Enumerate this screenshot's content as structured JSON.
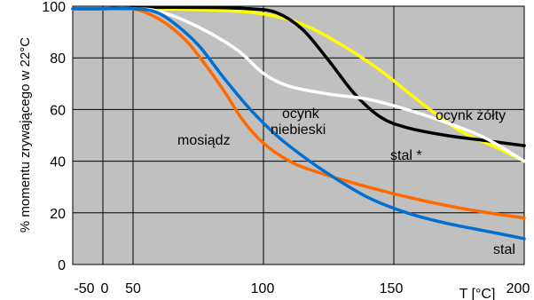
{
  "chart_data": {
    "type": "line",
    "title": "",
    "ylabel": "% momentu zrywającego w 22°C",
    "xlabel": "T [°C]",
    "xlim": [
      -50,
      200
    ],
    "ylim": [
      0,
      100
    ],
    "x_ticks": [
      -50,
      0,
      50,
      100,
      150,
      200
    ],
    "y_ticks": [
      0,
      20,
      40,
      60,
      80,
      100
    ],
    "grid": true,
    "legend": "none",
    "colors": {
      "plot_background": "#c0c0c0",
      "grid": "#000000"
    },
    "series": [
      {
        "name": "ocynk żółty",
        "color": "#ffff00",
        "points": [
          [
            -50,
            99
          ],
          [
            0,
            99
          ],
          [
            50,
            99
          ],
          [
            80,
            98.5
          ],
          [
            100,
            97
          ],
          [
            115,
            93
          ],
          [
            130,
            85
          ],
          [
            145,
            75
          ],
          [
            160,
            63
          ],
          [
            175,
            52
          ],
          [
            190,
            45
          ],
          [
            200,
            40
          ]
        ]
      },
      {
        "name": "stal *",
        "color": "#000000",
        "points": [
          [
            -50,
            99
          ],
          [
            0,
            99
          ],
          [
            50,
            99.5
          ],
          [
            80,
            99.5
          ],
          [
            95,
            99
          ],
          [
            105,
            97.5
          ],
          [
            115,
            91
          ],
          [
            125,
            79
          ],
          [
            135,
            66
          ],
          [
            145,
            57
          ],
          [
            155,
            53
          ],
          [
            170,
            50
          ],
          [
            185,
            48
          ],
          [
            200,
            46
          ]
        ]
      },
      {
        "name": "ocynk niebieski",
        "color": "#ffffff",
        "points": [
          [
            -50,
            99
          ],
          [
            0,
            99
          ],
          [
            50,
            99
          ],
          [
            60,
            98
          ],
          [
            75,
            92
          ],
          [
            90,
            83
          ],
          [
            100,
            74
          ],
          [
            110,
            69
          ],
          [
            125,
            66
          ],
          [
            140,
            64
          ],
          [
            155,
            60
          ],
          [
            170,
            55
          ],
          [
            185,
            49
          ],
          [
            200,
            40
          ]
        ]
      },
      {
        "name": "mosiądz",
        "color": "#ff6a00",
        "points": [
          [
            -50,
            99
          ],
          [
            0,
            99
          ],
          [
            50,
            99
          ],
          [
            60,
            95
          ],
          [
            70,
            87
          ],
          [
            78,
            77
          ],
          [
            85,
            67
          ],
          [
            92,
            56
          ],
          [
            100,
            47
          ],
          [
            110,
            40
          ],
          [
            120,
            36
          ],
          [
            140,
            30
          ],
          [
            160,
            25
          ],
          [
            180,
            21
          ],
          [
            200,
            18
          ]
        ]
      },
      {
        "name": "stal",
        "color": "#0070d0",
        "points": [
          [
            -50,
            99
          ],
          [
            0,
            99
          ],
          [
            50,
            99
          ],
          [
            58,
            98
          ],
          [
            65,
            94
          ],
          [
            75,
            85
          ],
          [
            85,
            72
          ],
          [
            95,
            60
          ],
          [
            105,
            50
          ],
          [
            115,
            42
          ],
          [
            125,
            35
          ],
          [
            140,
            26
          ],
          [
            155,
            20
          ],
          [
            170,
            16
          ],
          [
            185,
            13
          ],
          [
            200,
            10
          ]
        ]
      }
    ],
    "annotations": {
      "ocynk_zolty": "ocynk żółty",
      "stal_star": "stal *",
      "ocynk": "ocynk",
      "niebieski": "niebieski",
      "mosiadz": "mosiądz",
      "stal": "stal"
    }
  }
}
